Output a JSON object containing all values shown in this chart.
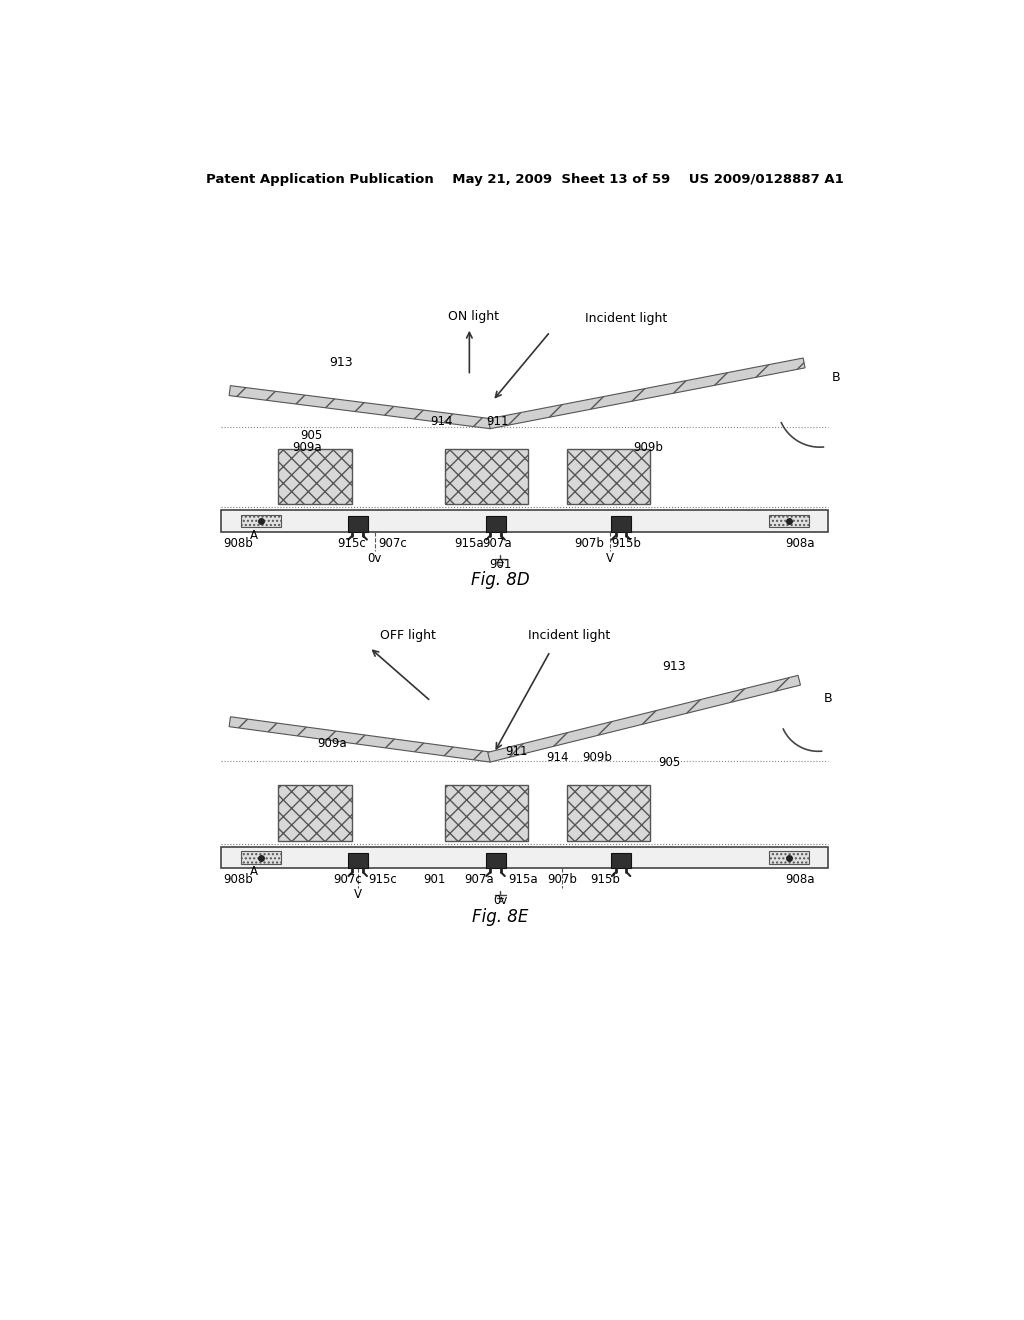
{
  "bg_color": "#ffffff",
  "header_text": "Patent Application Publication    May 21, 2009  Sheet 13 of 59    US 2009/0128887 A1",
  "fig8d_label": "Fig. 8D",
  "fig8e_label": "Fig. 8E",
  "on_light_label": "ON light",
  "off_light_label": "OFF light",
  "incident_light_label": "Incident light",
  "label_B": "B",
  "label_A": "A",
  "label_V": "V",
  "label_0v": "0v",
  "label_901": "901",
  "label_905_8d": "905",
  "label_905_8e": "905",
  "label_907a": "907a",
  "label_907b": "907b",
  "label_907c": "907c",
  "label_908a": "908a",
  "label_908b": "908b",
  "label_909a": "909a",
  "label_909b": "909b",
  "label_911": "911",
  "label_913": "913",
  "label_914": "914",
  "label_915a": "915a",
  "label_915b": "915b",
  "label_915c": "915c",
  "dark_gray": "#404040",
  "mid_gray": "#888888",
  "light_gray": "#cccccc",
  "box_edge": "#444444",
  "cell_fill": "#d0d0d0",
  "hinge_fill": "#303030"
}
